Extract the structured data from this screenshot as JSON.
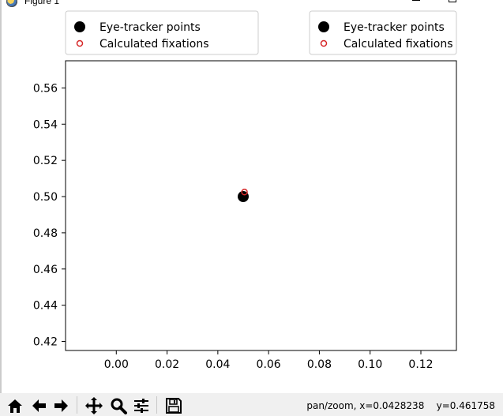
{
  "window": {
    "title": "Figure 1"
  },
  "legend_left": {
    "items": [
      {
        "label": "Eye-tracker points",
        "marker": "filled-circle",
        "color": "#000000"
      },
      {
        "label": "Calculated fixations",
        "marker": "hollow-circle",
        "color": "#d62728"
      }
    ]
  },
  "legend_right": {
    "items": [
      {
        "label": "Eye-tracker points",
        "marker": "filled-circle",
        "color": "#000000"
      },
      {
        "label": "Calculated fixations",
        "marker": "hollow-circle",
        "color": "#d62728"
      }
    ]
  },
  "chart_data": {
    "type": "scatter",
    "title": "",
    "xlabel": "",
    "ylabel": "",
    "xlim": [
      -0.02,
      0.134
    ],
    "ylim": [
      0.415,
      0.575
    ],
    "xticks": [
      0.0,
      0.02,
      0.04,
      0.06,
      0.08,
      0.1,
      0.12
    ],
    "xtick_labels": [
      "0.00",
      "0.02",
      "0.04",
      "0.06",
      "0.08",
      "0.10",
      "0.12"
    ],
    "yticks": [
      0.42,
      0.44,
      0.46,
      0.48,
      0.5,
      0.52,
      0.54,
      0.56
    ],
    "ytick_labels": [
      "0.42",
      "0.44",
      "0.46",
      "0.48",
      "0.50",
      "0.52",
      "0.54",
      "0.56"
    ],
    "grid": false,
    "series": [
      {
        "name": "Eye-tracker points",
        "marker": "filled-circle",
        "color": "#000000",
        "points": [
          [
            0.05,
            0.5
          ]
        ]
      },
      {
        "name": "Calculated fixations",
        "marker": "hollow-circle",
        "color": "#d62728",
        "points": [
          [
            0.0505,
            0.5025
          ]
        ]
      }
    ]
  },
  "toolbar": {
    "buttons": [
      {
        "name": "home-button",
        "icon": "home-icon"
      },
      {
        "name": "back-button",
        "icon": "arrow-left-icon"
      },
      {
        "name": "forward-button",
        "icon": "arrow-right-icon"
      },
      {
        "name": "pan-button",
        "icon": "move-icon"
      },
      {
        "name": "zoom-button",
        "icon": "magnifier-icon"
      },
      {
        "name": "configure-subplots-button",
        "icon": "sliders-icon"
      },
      {
        "name": "save-button",
        "icon": "floppy-disk-icon"
      }
    ],
    "status": "pan/zoom, x=0.0428238    y=0.461758"
  }
}
